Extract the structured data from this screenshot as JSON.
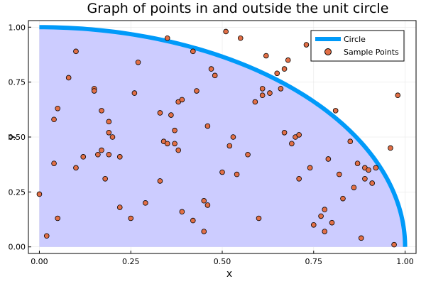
{
  "chart_data": {
    "type": "scatter",
    "title": "Graph of points in and outside the unit circle",
    "xlabel": "x",
    "ylabel": "y",
    "xlim": [
      -0.03,
      1.03
    ],
    "ylim": [
      -0.03,
      1.03
    ],
    "xticks": [
      "0.00",
      "0.25",
      "0.50",
      "0.75",
      "1.00"
    ],
    "yticks": [
      "0.00",
      "0.25",
      "0.50",
      "0.75",
      "1.00"
    ],
    "grid": true,
    "legend": {
      "position": "top-right"
    },
    "series": [
      {
        "name": "Circle",
        "kind": "line-area",
        "color": "#009af9",
        "fill": "#ccccff"
      },
      {
        "name": "Sample Points",
        "kind": "scatter",
        "color": "#e26f46",
        "x": [
          0.0,
          0.02,
          0.04,
          0.04,
          0.05,
          0.05,
          0.08,
          0.1,
          0.1,
          0.12,
          0.15,
          0.15,
          0.16,
          0.17,
          0.17,
          0.18,
          0.19,
          0.19,
          0.19,
          0.2,
          0.22,
          0.22,
          0.25,
          0.26,
          0.27,
          0.29,
          0.33,
          0.33,
          0.34,
          0.35,
          0.35,
          0.36,
          0.37,
          0.37,
          0.38,
          0.38,
          0.39,
          0.39,
          0.42,
          0.42,
          0.43,
          0.45,
          0.45,
          0.46,
          0.46,
          0.47,
          0.48,
          0.5,
          0.51,
          0.52,
          0.53,
          0.54,
          0.55,
          0.57,
          0.59,
          0.6,
          0.61,
          0.61,
          0.62,
          0.63,
          0.65,
          0.66,
          0.67,
          0.67,
          0.68,
          0.69,
          0.7,
          0.71,
          0.71,
          0.73,
          0.74,
          0.75,
          0.77,
          0.78,
          0.78,
          0.79,
          0.8,
          0.81,
          0.82,
          0.83,
          0.85,
          0.86,
          0.87,
          0.88,
          0.89,
          0.89,
          0.9,
          0.91,
          0.92,
          0.96,
          0.97,
          0.98
        ],
        "y": [
          0.24,
          0.05,
          0.58,
          0.38,
          0.63,
          0.13,
          0.77,
          0.36,
          0.89,
          0.41,
          0.72,
          0.71,
          0.42,
          0.44,
          0.62,
          0.31,
          0.52,
          0.42,
          0.57,
          0.5,
          0.41,
          0.18,
          0.13,
          0.7,
          0.84,
          0.2,
          0.61,
          0.3,
          0.48,
          0.95,
          0.47,
          0.6,
          0.47,
          0.53,
          0.66,
          0.44,
          0.67,
          0.16,
          0.89,
          0.12,
          0.71,
          0.07,
          0.21,
          0.19,
          0.55,
          0.81,
          0.78,
          0.34,
          0.98,
          0.46,
          0.5,
          0.33,
          0.95,
          0.42,
          0.66,
          0.13,
          0.69,
          0.72,
          0.87,
          0.7,
          0.79,
          0.72,
          0.81,
          0.52,
          0.85,
          0.47,
          0.5,
          0.31,
          0.51,
          0.92,
          0.36,
          0.1,
          0.14,
          0.07,
          0.17,
          0.4,
          0.11,
          0.62,
          0.33,
          0.22,
          0.48,
          0.27,
          0.38,
          0.04,
          0.31,
          0.36,
          0.35,
          0.29,
          0.36,
          0.45,
          0.01,
          0.69
        ]
      }
    ]
  }
}
